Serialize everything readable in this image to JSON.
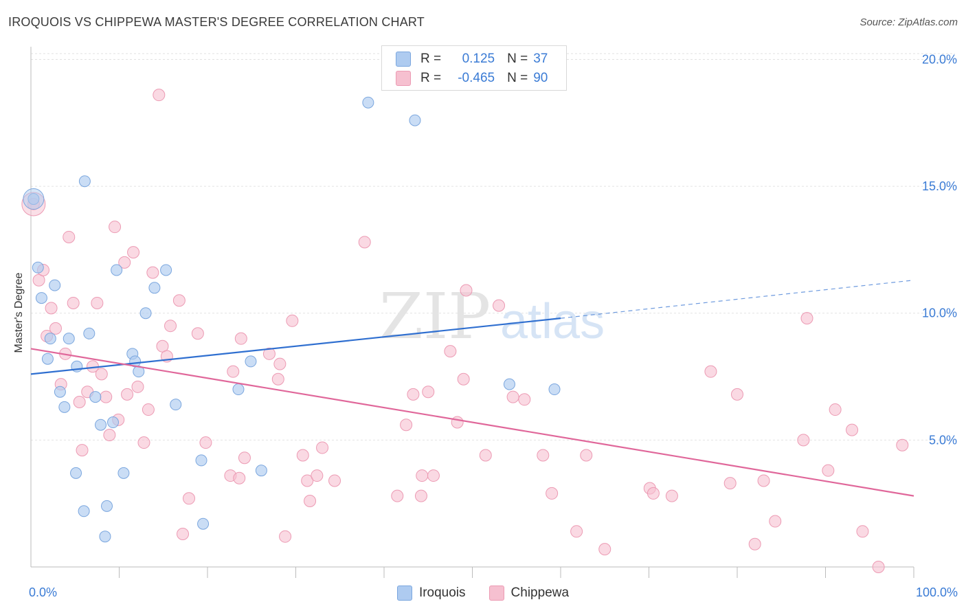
{
  "header": {
    "title": "IROQUOIS VS CHIPPEWA MASTER'S DEGREE CORRELATION CHART",
    "source": "Source: ZipAtlas.com"
  },
  "legend_top": {
    "rows": [
      {
        "r_label": "R =",
        "r_value": "0.125",
        "n_label": "N =",
        "n_value": "37"
      },
      {
        "r_label": "R =",
        "r_value": "-0.465",
        "n_label": "N =",
        "n_value": "90"
      }
    ]
  },
  "colors": {
    "iroquois_fill": "#aecbf0",
    "iroquois_stroke": "#7aa6de",
    "iroquois_line": "#2f6fd0",
    "chippewa_fill": "#f6c0d0",
    "chippewa_stroke": "#ec9ab3",
    "chippewa_line": "#e0679a",
    "axis_text": "#3a7bd5",
    "grid": "#e2e2e2"
  },
  "chart_data": {
    "type": "scatter",
    "title": "IROQUOIS VS CHIPPEWA MASTER'S DEGREE CORRELATION CHART",
    "xlabel": "",
    "ylabel": "Master's Degree",
    "xlim": [
      0,
      100
    ],
    "ylim": [
      0,
      20.5
    ],
    "x_ticks": [
      {
        "value": 0,
        "label": "0.0%"
      },
      {
        "value": 100,
        "label": "100.0%"
      }
    ],
    "y_ticks": [
      {
        "value": 5,
        "label": "5.0%"
      },
      {
        "value": 10,
        "label": "10.0%"
      },
      {
        "value": 15,
        "label": "15.0%"
      },
      {
        "value": 20,
        "label": "20.0%"
      }
    ],
    "grid": true,
    "legend_position": "bottom-center",
    "watermark": "ZIPatlas",
    "series": [
      {
        "name": "Iroquois",
        "r": 0.125,
        "n": 37,
        "trend": {
          "x0": 0,
          "y0": 7.6,
          "x1": 60,
          "y1": 9.8,
          "dash_x1": 100,
          "dash_y1": 11.3
        },
        "points": [
          [
            0.3,
            14.5
          ],
          [
            0.8,
            11.8
          ],
          [
            1.2,
            10.6
          ],
          [
            1.9,
            8.2
          ],
          [
            2.2,
            9.0
          ],
          [
            2.7,
            11.1
          ],
          [
            3.3,
            6.9
          ],
          [
            3.8,
            6.3
          ],
          [
            4.3,
            9.0
          ],
          [
            5.1,
            3.7
          ],
          [
            5.2,
            7.9
          ],
          [
            6.0,
            2.2
          ],
          [
            6.1,
            15.2
          ],
          [
            6.6,
            9.2
          ],
          [
            7.3,
            6.7
          ],
          [
            7.9,
            5.6
          ],
          [
            8.4,
            1.2
          ],
          [
            8.6,
            2.4
          ],
          [
            9.3,
            5.7
          ],
          [
            9.7,
            11.7
          ],
          [
            10.5,
            3.7
          ],
          [
            11.5,
            8.4
          ],
          [
            11.8,
            8.1
          ],
          [
            12.2,
            7.7
          ],
          [
            13.0,
            10.0
          ],
          [
            14.0,
            11.0
          ],
          [
            15.3,
            11.7
          ],
          [
            16.4,
            6.4
          ],
          [
            19.3,
            4.2
          ],
          [
            19.5,
            1.7
          ],
          [
            23.5,
            7.0
          ],
          [
            24.9,
            8.1
          ],
          [
            26.1,
            3.8
          ],
          [
            38.2,
            18.3
          ],
          [
            43.5,
            17.6
          ],
          [
            54.2,
            7.2
          ],
          [
            59.3,
            7.0
          ]
        ]
      },
      {
        "name": "Chippewa",
        "r": -0.465,
        "n": 90,
        "trend": {
          "x0": 0,
          "y0": 8.6,
          "x1": 100,
          "y1": 2.8
        },
        "points": [
          [
            0.3,
            14.3
          ],
          [
            0.9,
            11.3
          ],
          [
            1.4,
            11.7
          ],
          [
            1.8,
            9.1
          ],
          [
            2.3,
            10.2
          ],
          [
            2.8,
            9.4
          ],
          [
            3.4,
            7.2
          ],
          [
            3.9,
            8.4
          ],
          [
            4.3,
            13.0
          ],
          [
            4.8,
            10.4
          ],
          [
            5.5,
            6.5
          ],
          [
            5.8,
            4.6
          ],
          [
            6.4,
            6.9
          ],
          [
            7.0,
            7.9
          ],
          [
            7.5,
            10.4
          ],
          [
            8.0,
            7.6
          ],
          [
            8.5,
            6.7
          ],
          [
            8.9,
            5.2
          ],
          [
            9.5,
            13.4
          ],
          [
            9.9,
            5.8
          ],
          [
            10.6,
            12.0
          ],
          [
            10.9,
            6.8
          ],
          [
            11.6,
            12.4
          ],
          [
            12.1,
            7.1
          ],
          [
            12.8,
            4.9
          ],
          [
            13.3,
            6.2
          ],
          [
            13.8,
            11.6
          ],
          [
            14.5,
            18.6
          ],
          [
            14.9,
            8.7
          ],
          [
            15.4,
            8.3
          ],
          [
            15.8,
            9.5
          ],
          [
            16.8,
            10.5
          ],
          [
            17.2,
            1.3
          ],
          [
            17.9,
            2.7
          ],
          [
            18.9,
            9.2
          ],
          [
            19.8,
            4.9
          ],
          [
            22.6,
            3.6
          ],
          [
            22.9,
            7.7
          ],
          [
            23.6,
            3.5
          ],
          [
            23.8,
            9.0
          ],
          [
            24.2,
            4.3
          ],
          [
            27.0,
            8.4
          ],
          [
            28.0,
            7.4
          ],
          [
            28.2,
            8.0
          ],
          [
            28.8,
            1.2
          ],
          [
            29.6,
            9.7
          ],
          [
            30.8,
            4.4
          ],
          [
            31.3,
            3.4
          ],
          [
            31.6,
            2.6
          ],
          [
            32.4,
            3.6
          ],
          [
            33.0,
            4.7
          ],
          [
            34.4,
            3.4
          ],
          [
            37.8,
            12.8
          ],
          [
            41.5,
            2.8
          ],
          [
            42.5,
            5.6
          ],
          [
            43.3,
            6.8
          ],
          [
            44.2,
            2.8
          ],
          [
            44.3,
            3.6
          ],
          [
            45.0,
            6.9
          ],
          [
            45.6,
            3.6
          ],
          [
            47.5,
            8.5
          ],
          [
            48.3,
            5.7
          ],
          [
            49.0,
            7.4
          ],
          [
            49.3,
            10.9
          ],
          [
            51.5,
            4.4
          ],
          [
            53.0,
            10.3
          ],
          [
            54.6,
            6.7
          ],
          [
            55.9,
            6.6
          ],
          [
            58.0,
            4.4
          ],
          [
            59.0,
            2.9
          ],
          [
            61.8,
            1.4
          ],
          [
            62.9,
            4.4
          ],
          [
            65.0,
            0.7
          ],
          [
            70.1,
            3.1
          ],
          [
            70.5,
            2.9
          ],
          [
            72.6,
            2.8
          ],
          [
            77.0,
            7.7
          ],
          [
            79.2,
            3.3
          ],
          [
            80.0,
            6.8
          ],
          [
            82.0,
            0.9
          ],
          [
            83.0,
            3.4
          ],
          [
            84.3,
            1.8
          ],
          [
            87.5,
            5.0
          ],
          [
            87.9,
            9.8
          ],
          [
            90.3,
            3.8
          ],
          [
            91.1,
            6.2
          ],
          [
            93.0,
            5.4
          ],
          [
            94.2,
            1.4
          ],
          [
            96.0,
            0.0
          ],
          [
            98.7,
            4.8
          ]
        ]
      }
    ]
  },
  "bottom_legend": [
    {
      "label": "Iroquois"
    },
    {
      "label": "Chippewa"
    }
  ]
}
